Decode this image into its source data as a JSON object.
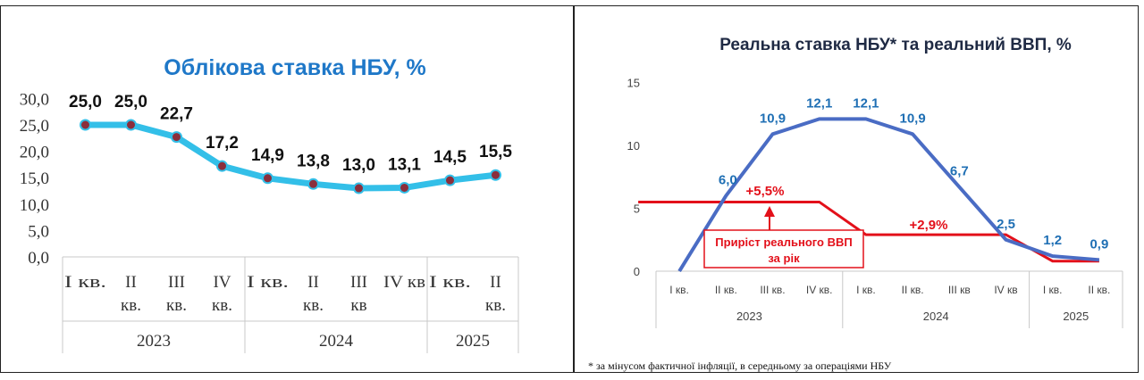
{
  "chart_data": [
    {
      "type": "line",
      "title": "Облікова ставка НБУ, %",
      "categories": [
        "I кв.",
        "II кв.",
        "III кв.",
        "IV кв.",
        "I кв.",
        "II кв.",
        "III кв",
        "IV кв",
        "I кв.",
        "II кв."
      ],
      "groups": [
        {
          "label": "2023",
          "start": 0,
          "end": 3
        },
        {
          "label": "2024",
          "start": 4,
          "end": 7
        },
        {
          "label": "2025",
          "start": 8,
          "end": 9
        }
      ],
      "series": [
        {
          "values": [
            25.0,
            25.0,
            22.7,
            17.2,
            14.9,
            13.8,
            13.0,
            13.1,
            14.5,
            15.5
          ]
        }
      ],
      "data_labels": [
        "25,0",
        "25,0",
        "22,7",
        "17,2",
        "14,9",
        "13,8",
        "13,0",
        "13,1",
        "14,5",
        "15,5"
      ],
      "ylim": [
        0,
        30
      ],
      "yticks": [
        "0,0",
        "5,0",
        "10,0",
        "15,0",
        "20,0",
        "25,0",
        "30,0"
      ],
      "xlabel": "",
      "ylabel": "",
      "grid": false,
      "colors": {
        "line": "#33bfe8",
        "marker": "#8b2e3c",
        "title": "#1f78c8"
      }
    },
    {
      "type": "line",
      "title": "Реальна ставка НБУ* та реальний ВВП, %",
      "categories": [
        "I кв.",
        "II кв.",
        "III кв.",
        "IV кв.",
        "I кв.",
        "II кв.",
        "III кв",
        "IV кв",
        "I кв.",
        "II кв."
      ],
      "groups": [
        {
          "label": "2023",
          "start": 0,
          "end": 3
        },
        {
          "label": "2024",
          "start": 4,
          "end": 7
        },
        {
          "label": "2025",
          "start": 8,
          "end": 9
        }
      ],
      "series": [
        {
          "values": [
            -1.0,
            6.0,
            10.9,
            12.1,
            12.1,
            10.9,
            6.7,
            2.5,
            1.2,
            0.9
          ],
          "labels": [
            "",
            "6,0",
            "10,9",
            "12,1",
            "12,1",
            "10,9",
            "6,7",
            "2,5",
            "1,2",
            "0,9"
          ]
        },
        {
          "values": [
            5.5,
            5.5,
            5.5,
            5.5,
            2.9,
            2.9,
            2.9,
            2.9,
            0.8,
            0.8
          ]
        }
      ],
      "annotations": [
        "+5,5%",
        "+2,9%",
        "Приріст реального ВВП",
        "за рік"
      ],
      "ylim": [
        0,
        15
      ],
      "yticks": [
        "0",
        "5",
        "10",
        "15"
      ],
      "xlabel": "",
      "ylabel": "",
      "grid": false,
      "colors": {
        "rate_line": "#4a6cc4",
        "gdp_line": "#e3101a",
        "labels": "#1f6fb4"
      }
    }
  ],
  "footnote": "* за мінусом фактичної інфляції,  в середньому за операціями НБУ"
}
